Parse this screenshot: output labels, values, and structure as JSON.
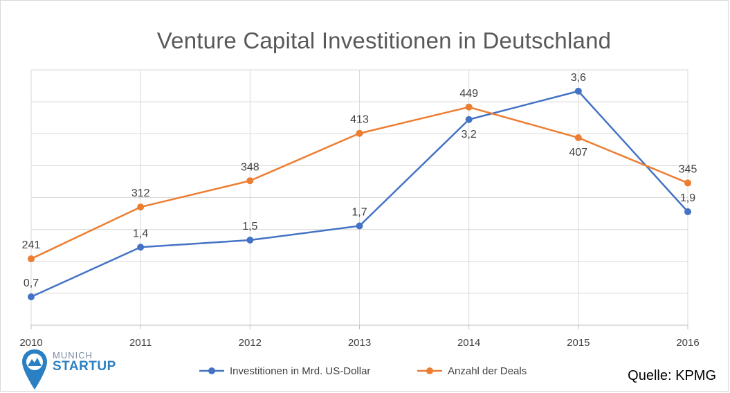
{
  "chart_data": {
    "type": "line",
    "title": "Venture Capital Investitionen in Deutschland",
    "categories": [
      "2010",
      "2011",
      "2012",
      "2013",
      "2014",
      "2015",
      "2016"
    ],
    "series": [
      {
        "name": "Investitionen in Mrd. US-Dollar",
        "values": [
          0.7,
          1.4,
          1.5,
          1.7,
          3.2,
          3.6,
          1.9
        ],
        "labels": [
          "0,7",
          "1,4",
          "1,5",
          "1,7",
          "3,2",
          "3,6",
          "1,9"
        ],
        "color": "#4472c4"
      },
      {
        "name": "Anzahl der Deals",
        "values": [
          241,
          312,
          348,
          413,
          449,
          407,
          345
        ],
        "labels": [
          "241",
          "312",
          "348",
          "413",
          "449",
          "407",
          "345"
        ],
        "color": "#ed7d31"
      }
    ],
    "grid": true,
    "legend": "bottom"
  },
  "logo": {
    "line1": "MUNICH",
    "line2": "STARTUP"
  },
  "source": "Quelle: KPMG"
}
